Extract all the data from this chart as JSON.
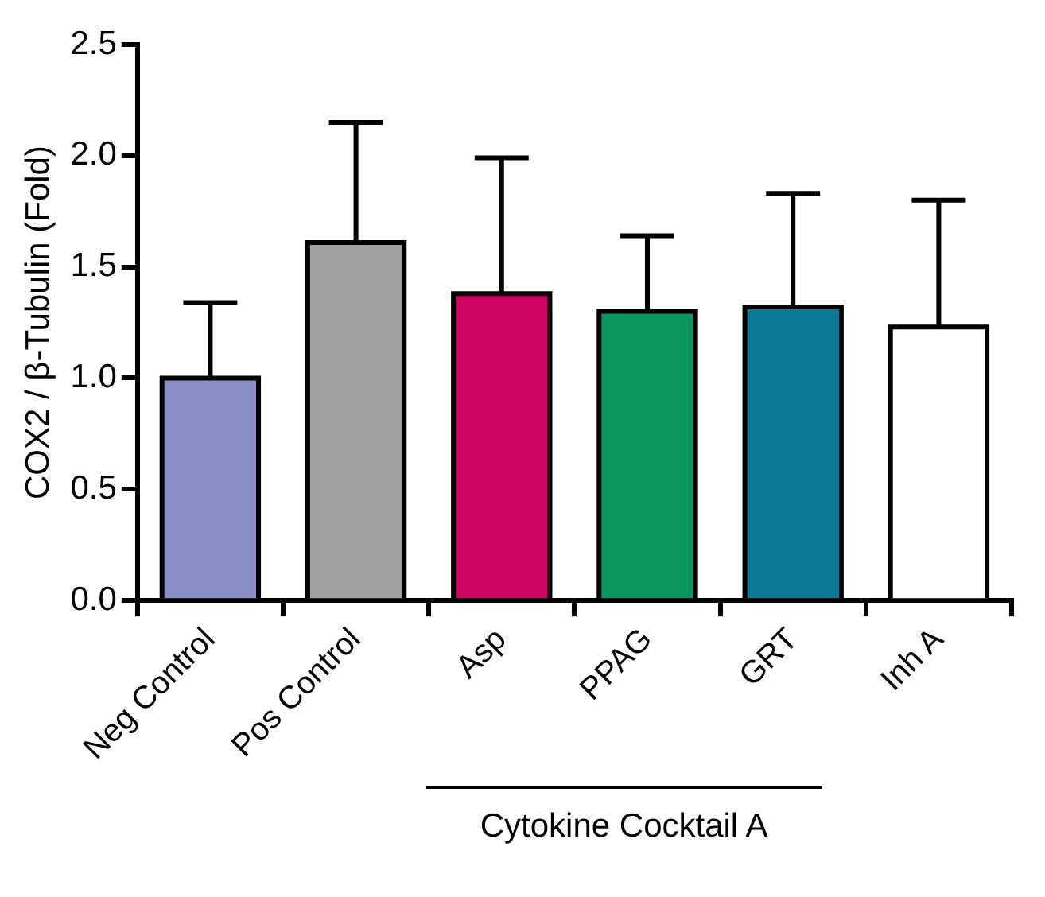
{
  "chart_data": {
    "type": "bar",
    "ylabel": "COX2 / β-Tubulin (Fold)",
    "categories": [
      "Neg Control",
      "Pos Control",
      "Asp",
      "PPAG",
      "GRT",
      "Inh A"
    ],
    "values": [
      1.0,
      1.61,
      1.38,
      1.3,
      1.32,
      1.23
    ],
    "colors": [
      "#8a8fca",
      "#a0a0a2",
      "#cc0662",
      "#0b955f",
      "#0a7a96",
      "#ffffff"
    ],
    "errors": [
      [
        1.0,
        1.34
      ],
      [
        1.61,
        2.15
      ],
      [
        1.38,
        1.99
      ],
      [
        1.3,
        1.64
      ],
      [
        1.32,
        1.83
      ],
      [
        1.23,
        1.8
      ]
    ],
    "ylim": [
      0,
      2.5
    ],
    "yticks": [
      {
        "value": 0,
        "label": "0.0"
      },
      0.5,
      {
        "value": 1,
        "label": "1.0"
      },
      1.5,
      {
        "value": 2,
        "label": "2.0"
      },
      2.5
    ],
    "grid": false,
    "legend": false,
    "annotations": [
      "Cytokine Cocktail A"
    ]
  }
}
